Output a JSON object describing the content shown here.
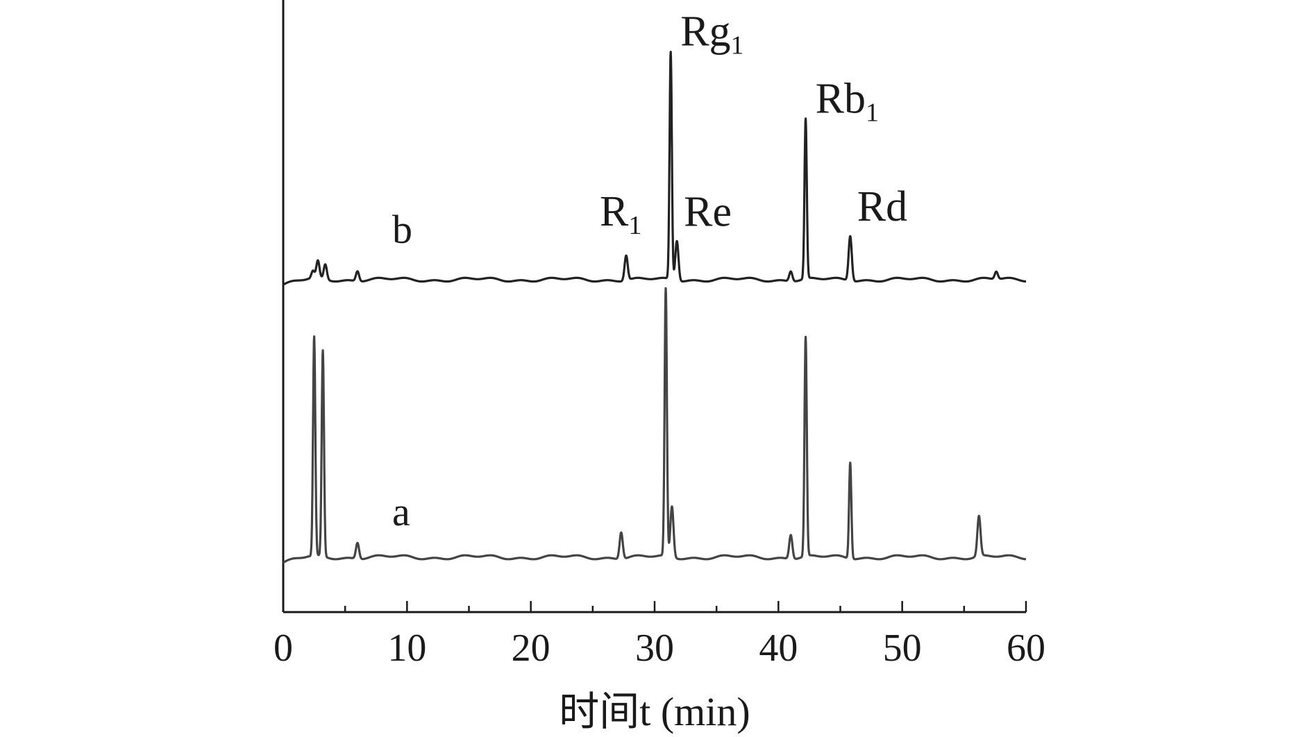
{
  "chart_data": {
    "type": "line",
    "xlabel": "时间t (min)",
    "ylabel": "",
    "xlim": [
      0,
      60
    ],
    "x_ticks": [
      0,
      10,
      20,
      30,
      40,
      50,
      60
    ],
    "x_minor_ticks": [
      5,
      15,
      25,
      35,
      45,
      55
    ],
    "y_axis_ticks": false,
    "series": [
      {
        "name": "a",
        "baseline": 0,
        "peaks": [
          {
            "t": 2.5,
            "height": 0.82
          },
          {
            "t": 3.2,
            "height": 0.77
          },
          {
            "t": 6.0,
            "height": 0.06
          },
          {
            "t": 27.3,
            "height": 0.1
          },
          {
            "t": 30.9,
            "height": 1.0
          },
          {
            "t": 31.4,
            "height": 0.19
          },
          {
            "t": 41.0,
            "height": 0.09
          },
          {
            "t": 42.2,
            "height": 0.82
          },
          {
            "t": 45.8,
            "height": 0.36
          },
          {
            "t": 56.2,
            "height": 0.15
          }
        ]
      },
      {
        "name": "b",
        "baseline": 0,
        "peaks": [
          {
            "t": 2.4,
            "height": 0.03
          },
          {
            "t": 2.8,
            "height": 0.07
          },
          {
            "t": 3.4,
            "height": 0.06
          },
          {
            "t": 6.0,
            "height": 0.04
          },
          {
            "t": 27.7,
            "height": 0.1,
            "label": "R",
            "label_sub": "1"
          },
          {
            "t": 31.3,
            "height": 0.91,
            "label": "Rg",
            "label_sub": "1"
          },
          {
            "t": 31.8,
            "height": 0.16,
            "label": "Re",
            "label_sub": ""
          },
          {
            "t": 41.0,
            "height": 0.04
          },
          {
            "t": 42.2,
            "height": 0.64,
            "label": "Rb",
            "label_sub": "1"
          },
          {
            "t": 45.8,
            "height": 0.18,
            "label": "Rd",
            "label_sub": ""
          },
          {
            "t": 57.6,
            "height": 0.03
          }
        ]
      }
    ],
    "grid": false,
    "legend": "none"
  }
}
